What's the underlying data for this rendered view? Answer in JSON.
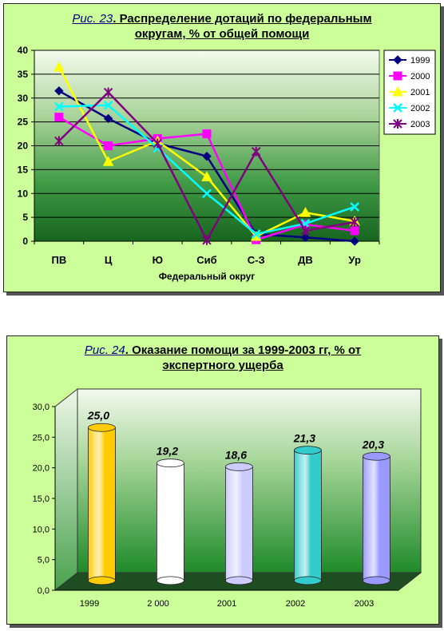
{
  "figure1": {
    "title_prefix": "Рис. 23",
    "title_line1": ". Распределение дотаций по федеральным",
    "title_line2": "округам, % от общей помощи",
    "chart_data": {
      "type": "line",
      "categories": [
        "ПВ",
        "Ц",
        "Ю",
        "Сиб",
        "С-З",
        "ДВ",
        "Ур"
      ],
      "xlabel": "Федеральный округ",
      "ylabel": "",
      "ylim": [
        0,
        40
      ],
      "yticks": [
        0,
        5,
        10,
        15,
        20,
        25,
        30,
        35,
        40
      ],
      "grid": true,
      "legend_position": "right",
      "series": [
        {
          "name": "1999",
          "color": "#000080",
          "marker": "diamond",
          "values": [
            31.5,
            25.7,
            20.5,
            17.8,
            1.5,
            0.8,
            0
          ]
        },
        {
          "name": "2000",
          "color": "#ff00ff",
          "marker": "square",
          "values": [
            26,
            20,
            21.5,
            22.5,
            0.3,
            3.5,
            2.2
          ]
        },
        {
          "name": "2001",
          "color": "#ffff00",
          "marker": "triangle",
          "values": [
            36.5,
            16.7,
            21,
            13.5,
            1,
            6,
            4.2
          ]
        },
        {
          "name": "2002",
          "color": "#00ffff",
          "marker": "x",
          "values": [
            28.2,
            28.5,
            19.5,
            10,
            1.5,
            3.7,
            7.2
          ]
        },
        {
          "name": "2003",
          "color": "#800080",
          "marker": "star",
          "values": [
            21,
            31.2,
            20.5,
            0.2,
            18.8,
            2.2,
            4
          ]
        }
      ]
    }
  },
  "figure2": {
    "title_prefix": "Рис. 24",
    "title_line1": ". Оказание помощи за 1999-2003 гг, % от",
    "title_line2": "экспертного ущерба",
    "chart_data": {
      "type": "bar",
      "categories": [
        "1999",
        "2 000",
        "2001",
        "2002",
        "2003"
      ],
      "values": [
        25.0,
        19.2,
        18.6,
        21.3,
        20.3
      ],
      "value_labels": [
        "25,0",
        "19,2",
        "18,6",
        "21,3",
        "20,3"
      ],
      "bar_colors": [
        "#ffcc00",
        "#ffffff",
        "#ccccff",
        "#33cccc",
        "#9999ff"
      ],
      "ylim": [
        0,
        30
      ],
      "yticks": [
        "0,0",
        "5,0",
        "10,0",
        "15,0",
        "20,0",
        "25,0",
        "30,0"
      ],
      "xlabel": "",
      "ylabel": "",
      "grid": false
    }
  }
}
